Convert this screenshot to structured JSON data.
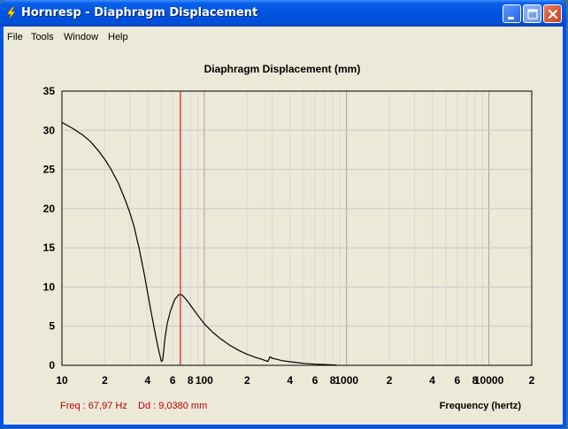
{
  "window": {
    "title": "Hornresp - Diaphragm Displacement",
    "icon": "lightning-bolt-icon",
    "controls": [
      "minimize-icon",
      "maximize-icon",
      "close-icon"
    ]
  },
  "menu": {
    "items": [
      {
        "label": "File"
      },
      {
        "label": "Tools"
      },
      {
        "label": "Window"
      },
      {
        "label": "Help"
      }
    ]
  },
  "readout": {
    "freq": "Freq : 67,97 Hz",
    "dd": "Dd : 9,0380 mm"
  },
  "colors": {
    "curve": "#000000",
    "cursor": "#c00000",
    "readout": "#c00000",
    "grid": "#c8c8c8"
  },
  "chart_data": {
    "type": "line",
    "title": "Diaphragm Displacement (mm)",
    "xlabel": "Frequency (hertz)",
    "ylabel": "",
    "xscale": "log",
    "xlim": [
      10,
      20000
    ],
    "ylim": [
      0,
      35
    ],
    "grid": true,
    "yticks": [
      0,
      5,
      10,
      15,
      20,
      25,
      30,
      35
    ],
    "xticks": [
      {
        "value": 10,
        "label": "10"
      },
      {
        "value": 20,
        "label": "2"
      },
      {
        "value": 40,
        "label": "4"
      },
      {
        "value": 60,
        "label": "6"
      },
      {
        "value": 80,
        "label": "8"
      },
      {
        "value": 100,
        "label": "100"
      },
      {
        "value": 200,
        "label": "2"
      },
      {
        "value": 400,
        "label": "4"
      },
      {
        "value": 600,
        "label": "6"
      },
      {
        "value": 800,
        "label": "8"
      },
      {
        "value": 1000,
        "label": "1000"
      },
      {
        "value": 2000,
        "label": "2"
      },
      {
        "value": 4000,
        "label": "4"
      },
      {
        "value": 6000,
        "label": "6"
      },
      {
        "value": 8000,
        "label": "8"
      },
      {
        "value": 10000,
        "label": "10000"
      },
      {
        "value": 20000,
        "label": "2"
      }
    ],
    "cursor_x": 67.97,
    "series": [
      {
        "x": [
          10,
          12,
          14,
          16,
          18,
          20,
          22,
          25,
          28,
          30,
          32,
          35,
          38,
          40,
          42,
          44,
          46,
          48,
          50,
          51,
          52,
          53,
          55,
          58,
          62,
          66,
          68,
          70,
          73,
          77,
          82,
          90,
          100,
          115,
          130,
          150,
          175,
          200,
          230,
          260,
          280,
          290,
          300,
          320,
          350,
          400,
          450,
          500,
          600,
          700,
          800,
          850
        ],
        "y": [
          31.0,
          30.2,
          29.4,
          28.5,
          27.4,
          26.3,
          25.1,
          23.2,
          21.0,
          19.5,
          17.8,
          14.8,
          11.5,
          9.3,
          7.1,
          5.2,
          3.4,
          1.8,
          0.5,
          0.6,
          2.0,
          3.5,
          5.4,
          7.0,
          8.4,
          9.0,
          9.04,
          8.95,
          8.6,
          8.1,
          7.4,
          6.4,
          5.3,
          4.2,
          3.4,
          2.6,
          1.9,
          1.4,
          1.0,
          0.7,
          0.5,
          1.1,
          0.9,
          0.8,
          0.6,
          0.45,
          0.35,
          0.25,
          0.15,
          0.1,
          0.05,
          0.05
        ]
      }
    ]
  }
}
